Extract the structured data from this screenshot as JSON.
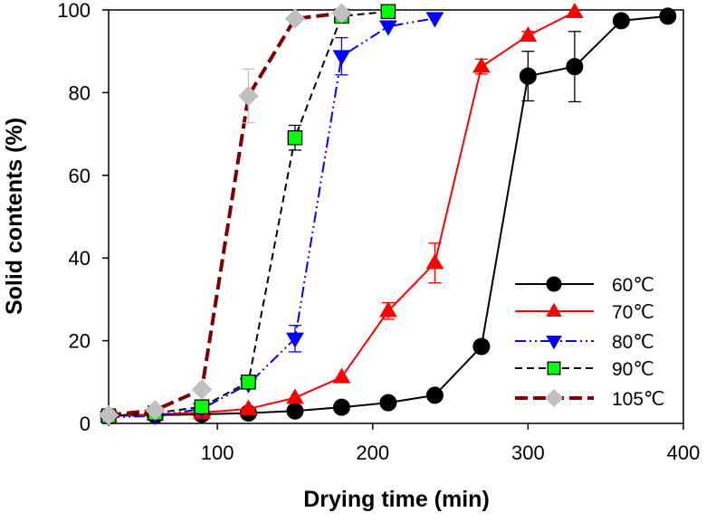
{
  "chart_data": {
    "type": "line",
    "title": "",
    "xlabel": "Drying time (min)",
    "ylabel": "Solid contents (%)",
    "xlim": [
      30,
      400
    ],
    "ylim": [
      0,
      100
    ],
    "xticks": [
      100,
      200,
      300,
      400
    ],
    "yticks": [
      0,
      20,
      40,
      60,
      80,
      100
    ],
    "grid": false,
    "legend_position": "bottom-right",
    "series": [
      {
        "name": "60℃",
        "color": "#000000",
        "line_style": "solid",
        "marker": "circle",
        "marker_fill": "#000000",
        "x": [
          30,
          60,
          90,
          120,
          150,
          180,
          210,
          240,
          270,
          300,
          330,
          360,
          390
        ],
        "y": [
          1.8,
          2.0,
          2.2,
          2.5,
          3.0,
          3.9,
          5.0,
          6.8,
          18.6,
          84.0,
          86.3,
          97.4,
          98.5
        ],
        "err": [
          0,
          0,
          0,
          0,
          0,
          0,
          0,
          0,
          0,
          6.0,
          8.5,
          0,
          0
        ]
      },
      {
        "name": "70℃",
        "color": "#ff0000",
        "line_style": "solid",
        "marker": "triangle-up",
        "marker_fill": "#ff0000",
        "x": [
          30,
          60,
          90,
          120,
          150,
          180,
          210,
          240,
          270,
          300,
          330
        ],
        "y": [
          1.8,
          2.2,
          2.6,
          3.5,
          6.2,
          11.2,
          27.2,
          38.8,
          86.3,
          93.8,
          99.5
        ],
        "err": [
          0,
          0,
          0,
          0,
          0,
          0,
          2.0,
          4.8,
          1.8,
          1.0,
          0
        ]
      },
      {
        "name": "80℃",
        "color": "#0000ff",
        "line_style": "dash-dot-dot",
        "marker": "triangle-down",
        "marker_fill": "#0000ff",
        "x": [
          30,
          60,
          90,
          120,
          150,
          180,
          210,
          240
        ],
        "y": [
          1.5,
          1.8,
          3.5,
          9.5,
          20.5,
          88.8,
          96.0,
          98.0
        ],
        "err": [
          0,
          0,
          0,
          0,
          3.2,
          4.5,
          0,
          0
        ]
      },
      {
        "name": "90℃",
        "color": "#000000",
        "line_style": "dashed",
        "marker": "square",
        "marker_fill": "#00ff00",
        "x": [
          30,
          60,
          90,
          120,
          150,
          180,
          210
        ],
        "y": [
          1.8,
          2.5,
          4.0,
          10.0,
          69.1,
          98.5,
          99.6
        ],
        "err": [
          0,
          0,
          0,
          0,
          3.0,
          0,
          0
        ]
      },
      {
        "name": "105℃",
        "color": "#800000",
        "line_style": "long-dash",
        "marker": "diamond",
        "marker_fill": "#c0c0c0",
        "x": [
          30,
          60,
          90,
          120,
          150,
          180
        ],
        "y": [
          2.0,
          3.2,
          8.2,
          79.2,
          97.9,
          99.2
        ],
        "err": [
          0,
          0,
          0,
          6.5,
          0,
          0
        ]
      }
    ]
  }
}
